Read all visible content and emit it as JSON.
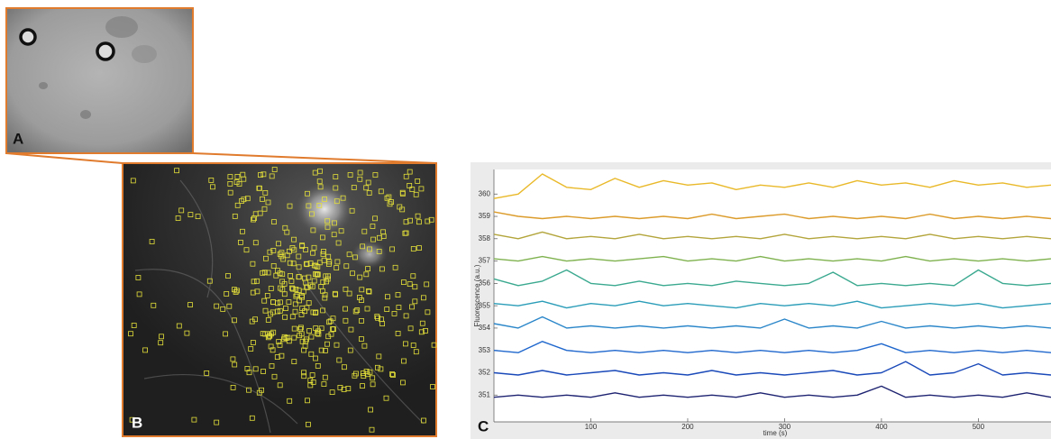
{
  "panel_labels": [
    "A",
    "B",
    "C"
  ],
  "chart_data": {
    "type": "line",
    "xlabel": "time (s)",
    "ylabel": "Fluorescence (a.u.)",
    "x": [
      0,
      25,
      50,
      75,
      100,
      125,
      150,
      175,
      200,
      225,
      250,
      275,
      300,
      325,
      350,
      375,
      400,
      425,
      450,
      475,
      500,
      525,
      550,
      575
    ],
    "xlim": [
      0,
      575
    ],
    "xticks": [
      100,
      200,
      300,
      400,
      500
    ],
    "ylim": [
      349.8,
      361.1
    ],
    "yticks": [
      351,
      352,
      353,
      354,
      355,
      356,
      357,
      358,
      359,
      360
    ],
    "series": [
      {
        "color": "#e9b92a",
        "values": [
          359.8,
          360.0,
          360.9,
          360.3,
          360.2,
          360.7,
          360.3,
          360.6,
          360.4,
          360.5,
          360.2,
          360.4,
          360.3,
          360.5,
          360.3,
          360.6,
          360.4,
          360.5,
          360.3,
          360.6,
          360.4,
          360.5,
          360.3,
          360.4
        ]
      },
      {
        "color": "#dc9c2c",
        "values": [
          359.2,
          359.0,
          358.9,
          359.0,
          358.9,
          359.0,
          358.9,
          359.0,
          358.9,
          359.1,
          358.9,
          359.0,
          359.1,
          358.9,
          359.0,
          358.9,
          359.0,
          358.9,
          359.1,
          358.9,
          359.0,
          358.9,
          359.0,
          358.9
        ]
      },
      {
        "color": "#b3a53c",
        "values": [
          358.2,
          358.0,
          358.3,
          358.0,
          358.1,
          358.0,
          358.2,
          358.0,
          358.1,
          358.0,
          358.1,
          358.0,
          358.2,
          358.0,
          358.1,
          358.0,
          358.1,
          358.0,
          358.2,
          358.0,
          358.1,
          358.0,
          358.1,
          358.0
        ]
      },
      {
        "color": "#7fb24f",
        "values": [
          357.1,
          357.0,
          357.2,
          357.0,
          357.1,
          357.0,
          357.1,
          357.2,
          357.0,
          357.1,
          357.0,
          357.2,
          357.0,
          357.1,
          357.0,
          357.1,
          357.0,
          357.2,
          357.0,
          357.1,
          357.0,
          357.1,
          357.0,
          357.1
        ]
      },
      {
        "color": "#3ba98f",
        "values": [
          356.2,
          355.9,
          356.1,
          356.6,
          356.0,
          355.9,
          356.1,
          355.9,
          356.0,
          355.9,
          356.1,
          356.0,
          355.9,
          356.0,
          356.5,
          355.9,
          356.0,
          355.9,
          356.0,
          355.9,
          356.6,
          356.0,
          355.9,
          356.0
        ]
      },
      {
        "color": "#2b9db8",
        "values": [
          355.1,
          355.0,
          355.2,
          354.9,
          355.1,
          355.0,
          355.2,
          355.0,
          355.1,
          355.0,
          354.9,
          355.1,
          355.0,
          355.1,
          355.0,
          355.2,
          354.9,
          355.0,
          355.1,
          355.0,
          355.1,
          354.9,
          355.0,
          355.1
        ]
      },
      {
        "color": "#2a86c9",
        "values": [
          354.2,
          354.0,
          354.5,
          354.0,
          354.1,
          354.0,
          354.1,
          354.0,
          354.1,
          354.0,
          354.1,
          354.0,
          354.4,
          354.0,
          354.1,
          354.0,
          354.3,
          354.0,
          354.1,
          354.0,
          354.1,
          354.0,
          354.1,
          354.0
        ]
      },
      {
        "color": "#1f67cd",
        "values": [
          353.0,
          352.9,
          353.4,
          353.0,
          352.9,
          353.0,
          352.9,
          353.0,
          352.9,
          353.0,
          352.9,
          353.0,
          352.9,
          353.0,
          352.9,
          353.0,
          353.3,
          352.9,
          353.0,
          352.9,
          353.0,
          352.9,
          353.0,
          352.9
        ]
      },
      {
        "color": "#1a49b9",
        "values": [
          352.0,
          351.9,
          352.1,
          351.9,
          352.0,
          352.1,
          351.9,
          352.0,
          351.9,
          352.1,
          351.9,
          352.0,
          351.9,
          352.0,
          352.1,
          351.9,
          352.0,
          352.5,
          351.9,
          352.0,
          352.4,
          351.9,
          352.0,
          351.9
        ]
      },
      {
        "color": "#1e2371",
        "values": [
          350.9,
          351.0,
          350.9,
          351.0,
          350.9,
          351.1,
          350.9,
          351.0,
          350.9,
          351.0,
          350.9,
          351.1,
          350.9,
          351.0,
          350.9,
          351.0,
          351.4,
          350.9,
          351.0,
          350.9,
          351.0,
          350.9,
          351.1,
          350.9
        ]
      }
    ]
  }
}
